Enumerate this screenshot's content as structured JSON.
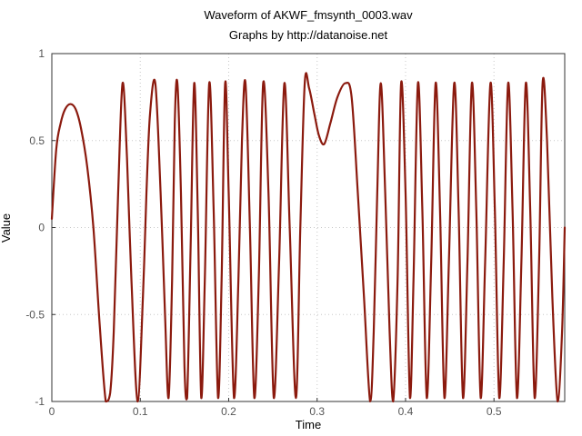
{
  "chart_data": {
    "type": "line",
    "title": "Waveform of AKWF_fmsynth_0003.wav",
    "subtitle": "Graphs by http://datanoise.net",
    "xlabel": "Time",
    "ylabel": "Value",
    "xlim": [
      0,
      0.58
    ],
    "ylim": [
      -1,
      1
    ],
    "xticks": [
      {
        "value": 0,
        "label": "0"
      },
      {
        "value": 0.1,
        "label": "0.1"
      },
      {
        "value": 0.2,
        "label": "0.2"
      },
      {
        "value": 0.3,
        "label": "0.3"
      },
      {
        "value": 0.4,
        "label": "0.4"
      },
      {
        "value": 0.5,
        "label": "0.5"
      }
    ],
    "yticks": [
      {
        "value": -1,
        "label": "-1"
      },
      {
        "value": -0.5,
        "label": "-0.5"
      },
      {
        "value": 0,
        "label": "0"
      },
      {
        "value": 0.5,
        "label": "0.5"
      },
      {
        "value": 1,
        "label": "1"
      }
    ],
    "grid": true,
    "series": [
      {
        "color": "#8b1a0e",
        "points": [
          [
            0,
            0.05
          ],
          [
            0.005,
            0.45
          ],
          [
            0.01,
            0.6
          ],
          [
            0.015,
            0.68
          ],
          [
            0.021,
            0.71
          ],
          [
            0.027,
            0.68
          ],
          [
            0.033,
            0.57
          ],
          [
            0.04,
            0.35
          ],
          [
            0.047,
            0.0
          ],
          [
            0.054,
            -0.55
          ],
          [
            0.061,
            -1.0
          ],
          [
            0.066,
            -0.95
          ],
          [
            0.07,
            -0.6
          ],
          [
            0.075,
            0.2
          ],
          [
            0.08,
            0.83
          ],
          [
            0.085,
            0.4
          ],
          [
            0.09,
            -0.3
          ],
          [
            0.097,
            -1.0
          ],
          [
            0.103,
            -0.4
          ],
          [
            0.107,
            0.2
          ],
          [
            0.111,
            0.65
          ],
          [
            0.117,
            0.83
          ],
          [
            0.123,
            0.2
          ],
          [
            0.128,
            -0.5
          ],
          [
            0.132,
            -0.98
          ],
          [
            0.136,
            -0.3
          ],
          [
            0.139,
            0.6
          ],
          [
            0.142,
            0.83
          ],
          [
            0.146,
            0.2
          ],
          [
            0.15,
            -0.8
          ],
          [
            0.153,
            -0.98
          ],
          [
            0.157,
            -0.1
          ],
          [
            0.161,
            0.83
          ],
          [
            0.165,
            0.1
          ],
          [
            0.169,
            -0.98
          ],
          [
            0.173,
            -0.3
          ],
          [
            0.178,
            0.83
          ],
          [
            0.183,
            0.1
          ],
          [
            0.188,
            -0.98
          ],
          [
            0.192,
            -0.3
          ],
          [
            0.196,
            0.83
          ],
          [
            0.2,
            0.2
          ],
          [
            0.206,
            -0.98
          ],
          [
            0.211,
            -0.3
          ],
          [
            0.215,
            0.5
          ],
          [
            0.219,
            0.83
          ],
          [
            0.224,
            0.0
          ],
          [
            0.229,
            -0.98
          ],
          [
            0.234,
            -0.3
          ],
          [
            0.239,
            0.83
          ],
          [
            0.245,
            0.2
          ],
          [
            0.251,
            -0.98
          ],
          [
            0.257,
            -0.2
          ],
          [
            0.263,
            0.83
          ],
          [
            0.269,
            0.0
          ],
          [
            0.276,
            -0.98
          ],
          [
            0.281,
            0.0
          ],
          [
            0.286,
            0.83
          ],
          [
            0.291,
            0.8
          ],
          [
            0.297,
            0.65
          ],
          [
            0.302,
            0.53
          ],
          [
            0.308,
            0.48
          ],
          [
            0.315,
            0.6
          ],
          [
            0.323,
            0.75
          ],
          [
            0.332,
            0.83
          ],
          [
            0.339,
            0.75
          ],
          [
            0.346,
            0.2
          ],
          [
            0.353,
            -0.4
          ],
          [
            0.36,
            -1.0
          ],
          [
            0.364,
            -0.6
          ],
          [
            0.368,
            0.2
          ],
          [
            0.372,
            0.83
          ],
          [
            0.377,
            0.2
          ],
          [
            0.382,
            -0.6
          ],
          [
            0.386,
            -1.0
          ],
          [
            0.391,
            -0.3
          ],
          [
            0.395,
            0.83
          ],
          [
            0.4,
            0.2
          ],
          [
            0.405,
            -0.98
          ],
          [
            0.409,
            -0.3
          ],
          [
            0.414,
            0.83
          ],
          [
            0.419,
            0.1
          ],
          [
            0.424,
            -0.98
          ],
          [
            0.429,
            -0.2
          ],
          [
            0.434,
            0.83
          ],
          [
            0.439,
            0.1
          ],
          [
            0.444,
            -0.98
          ],
          [
            0.449,
            -0.2
          ],
          [
            0.455,
            0.83
          ],
          [
            0.46,
            0.1
          ],
          [
            0.465,
            -0.98
          ],
          [
            0.47,
            -0.2
          ],
          [
            0.475,
            0.83
          ],
          [
            0.48,
            0.1
          ],
          [
            0.485,
            -0.98
          ],
          [
            0.49,
            -0.2
          ],
          [
            0.496,
            0.83
          ],
          [
            0.501,
            0.1
          ],
          [
            0.506,
            -0.98
          ],
          [
            0.511,
            -0.2
          ],
          [
            0.516,
            0.83
          ],
          [
            0.521,
            0.1
          ],
          [
            0.526,
            -0.98
          ],
          [
            0.531,
            -0.2
          ],
          [
            0.536,
            0.83
          ],
          [
            0.541,
            0.1
          ],
          [
            0.546,
            -0.98
          ],
          [
            0.551,
            -0.2
          ],
          [
            0.555,
            0.83
          ],
          [
            0.56,
            0.5
          ],
          [
            0.566,
            -0.4
          ],
          [
            0.572,
            -1.0
          ],
          [
            0.577,
            -0.6
          ],
          [
            0.58,
            0.0
          ]
        ]
      }
    ]
  }
}
